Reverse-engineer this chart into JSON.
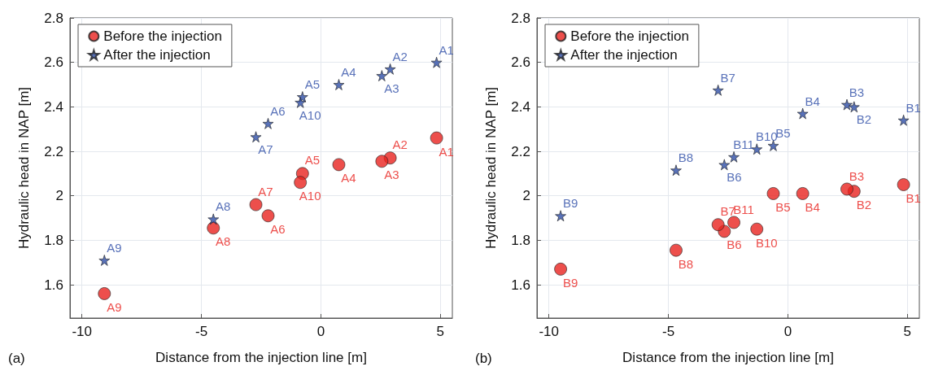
{
  "chart_data": [
    {
      "type": "scatter",
      "xlabel": "Distance from the injection line [m]",
      "ylabel": "Hydraulic head in NAP [m]",
      "annotations": [
        "(a)"
      ],
      "xlim": [
        -10.5,
        5.5
      ],
      "xticks": [
        -10,
        -5,
        0,
        5
      ],
      "ylim": [
        1.45,
        2.8
      ],
      "yticks": [
        1.6,
        1.8,
        2,
        2.2,
        2.4,
        2.6,
        2.8
      ],
      "grid": true,
      "legend": "top left",
      "series": [
        {
          "name": "Before the injection",
          "color": "#e8231f",
          "marker": "circle",
          "x": [
            4.84,
            2.9,
            2.55,
            0.75,
            -0.77,
            -2.21,
            -2.72,
            -4.5,
            -9.06,
            -0.86
          ],
          "values": [
            2.26,
            2.17,
            2.155,
            2.14,
            2.1,
            1.91,
            1.96,
            1.855,
            1.56,
            2.06
          ],
          "value_labels": [
            "A1",
            "A2",
            "A3",
            "A4",
            "A5",
            "A6",
            "A7",
            "A8",
            "A9",
            "A10"
          ]
        },
        {
          "name": "After the injection",
          "color": "#2f4fa8",
          "marker": "star",
          "x": [
            4.84,
            2.9,
            2.55,
            0.75,
            -0.77,
            -2.21,
            -2.72,
            -4.5,
            -9.06,
            -0.86
          ],
          "values": [
            2.6,
            2.57,
            2.54,
            2.5,
            2.445,
            2.325,
            2.265,
            1.895,
            1.71,
            2.42
          ],
          "value_labels": [
            "A1",
            "A2",
            "A3",
            "A4",
            "A5",
            "A6",
            "A7",
            "A8",
            "A9",
            "A10"
          ]
        }
      ]
    },
    {
      "type": "scatter",
      "xlabel": "Distance from the injection line [m]",
      "ylabel": "Hydraulic head in NAP [m]",
      "annotations": [
        "(b)"
      ],
      "xlim": [
        -10.5,
        5.5
      ],
      "xticks": [
        -10,
        -5,
        0,
        5
      ],
      "ylim": [
        1.45,
        2.8
      ],
      "yticks": [
        1.6,
        1.8,
        2,
        2.2,
        2.4,
        2.6,
        2.8
      ],
      "grid": true,
      "legend": "top left",
      "series": [
        {
          "name": "Before the injection",
          "color": "#e8231f",
          "marker": "circle",
          "x": [
            4.84,
            2.77,
            2.47,
            0.62,
            -0.61,
            -2.66,
            -2.92,
            -4.68,
            -9.51,
            -1.3,
            -2.26
          ],
          "values": [
            2.05,
            2.02,
            2.03,
            2.01,
            2.01,
            1.84,
            1.87,
            1.755,
            1.67,
            1.85,
            1.88
          ],
          "value_labels": [
            "B1",
            "B2",
            "B3",
            "B4",
            "B5",
            "B6",
            "B7",
            "B8",
            "B9",
            "B10",
            "B11"
          ]
        },
        {
          "name": "After the injection",
          "color": "#2f4fa8",
          "marker": "star",
          "x": [
            4.84,
            2.77,
            2.47,
            0.62,
            -0.61,
            -2.66,
            -2.92,
            -4.68,
            -9.51,
            -1.3,
            -2.26
          ],
          "values": [
            2.34,
            2.4,
            2.41,
            2.37,
            2.226,
            2.14,
            2.475,
            2.115,
            1.91,
            2.21,
            2.175
          ],
          "value_labels": [
            "B1",
            "B2",
            "B3",
            "B4",
            "B5",
            "B6",
            "B7",
            "B8",
            "B9",
            "B10",
            "B11"
          ]
        }
      ]
    }
  ]
}
